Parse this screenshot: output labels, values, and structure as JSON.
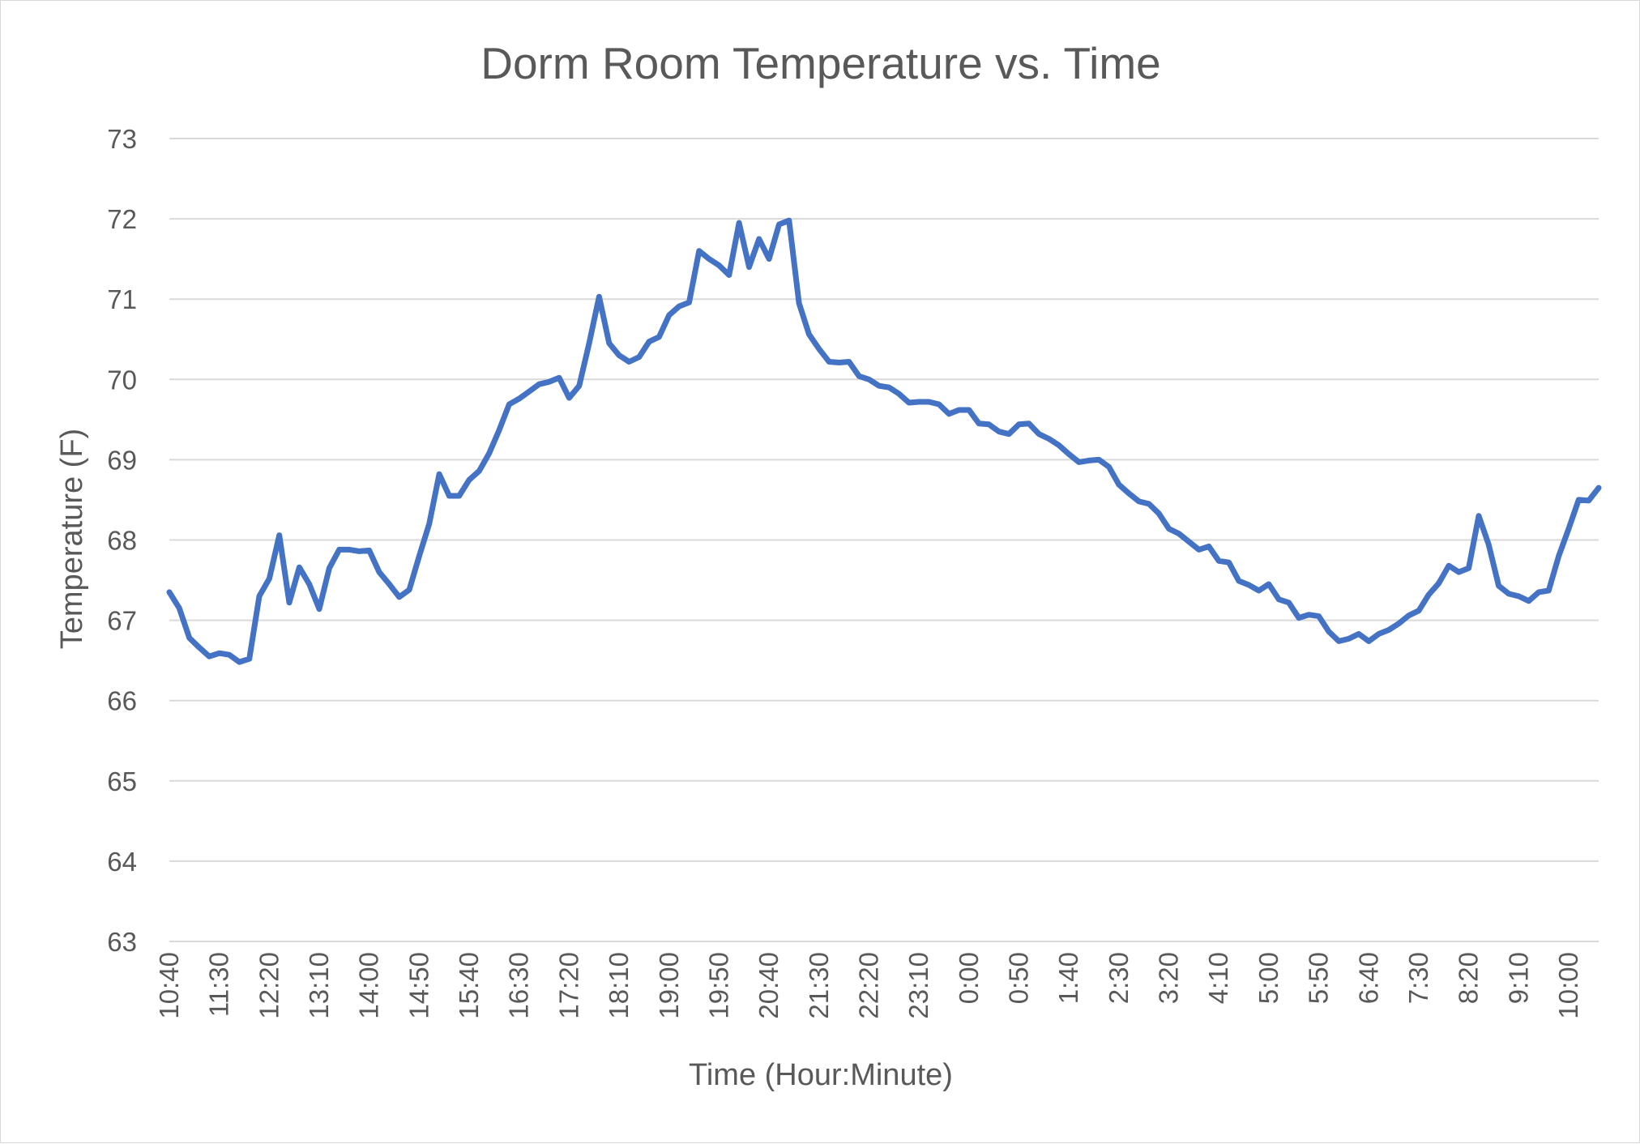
{
  "chart_data": {
    "type": "line",
    "title": "Dorm Room Temperature vs. Time",
    "xlabel": "Time (Hour:Minute)",
    "ylabel": "Temperature (F)",
    "ylim": [
      63,
      73
    ],
    "y_ticks": [
      "63",
      "64",
      "65",
      "66",
      "67",
      "68",
      "69",
      "70",
      "71",
      "72",
      "73"
    ],
    "x_tick_labels": [
      "10:40",
      "11:30",
      "12:20",
      "13:10",
      "14:00",
      "14:50",
      "15:40",
      "16:30",
      "17:20",
      "18:10",
      "19:00",
      "19:50",
      "20:40",
      "21:30",
      "22:20",
      "23:10",
      "0:00",
      "0:50",
      "1:40",
      "2:30",
      "3:20",
      "4:10",
      "5:00",
      "5:50",
      "6:40",
      "7:30",
      "8:20",
      "9:10",
      "10:00"
    ],
    "x_tick_every": 5,
    "grid": true,
    "legend": "none",
    "series": [
      {
        "color": "#4472c4",
        "values": [
          67.35,
          67.15,
          66.78,
          66.66,
          66.55,
          66.59,
          66.57,
          66.48,
          66.52,
          67.3,
          67.52,
          68.06,
          67.22,
          67.66,
          67.45,
          67.14,
          67.65,
          67.88,
          67.88,
          67.86,
          67.87,
          67.6,
          67.45,
          67.29,
          67.38,
          67.8,
          68.2,
          68.82,
          68.55,
          68.55,
          68.75,
          68.86,
          69.08,
          69.37,
          69.69,
          69.76,
          69.85,
          69.94,
          69.97,
          70.02,
          69.77,
          69.92,
          70.45,
          71.03,
          70.45,
          70.3,
          70.22,
          70.28,
          70.47,
          70.53,
          70.8,
          70.91,
          70.96,
          71.6,
          71.5,
          71.42,
          71.3,
          71.95,
          71.4,
          71.75,
          71.5,
          71.93,
          71.98,
          70.95,
          70.56,
          70.38,
          70.22,
          70.21,
          70.22,
          70.04,
          70.0,
          69.92,
          69.9,
          69.82,
          69.71,
          69.72,
          69.72,
          69.69,
          69.57,
          69.62,
          69.62,
          69.45,
          69.44,
          69.35,
          69.32,
          69.44,
          69.45,
          69.32,
          69.26,
          69.18,
          69.07,
          68.97,
          68.99,
          69.0,
          68.91,
          68.69,
          68.58,
          68.48,
          68.45,
          68.33,
          68.14,
          68.08,
          67.98,
          67.88,
          67.92,
          67.74,
          67.72,
          67.49,
          67.44,
          67.37,
          67.45,
          67.26,
          67.22,
          67.03,
          67.07,
          67.05,
          66.86,
          66.74,
          66.77,
          66.83,
          66.74,
          66.83,
          66.88,
          66.96,
          67.06,
          67.12,
          67.32,
          67.46,
          67.68,
          67.6,
          67.65,
          68.3,
          67.94,
          67.43,
          67.33,
          67.3,
          67.24,
          67.35,
          67.37,
          67.8,
          68.14,
          68.5,
          68.49,
          68.65
        ]
      }
    ]
  }
}
